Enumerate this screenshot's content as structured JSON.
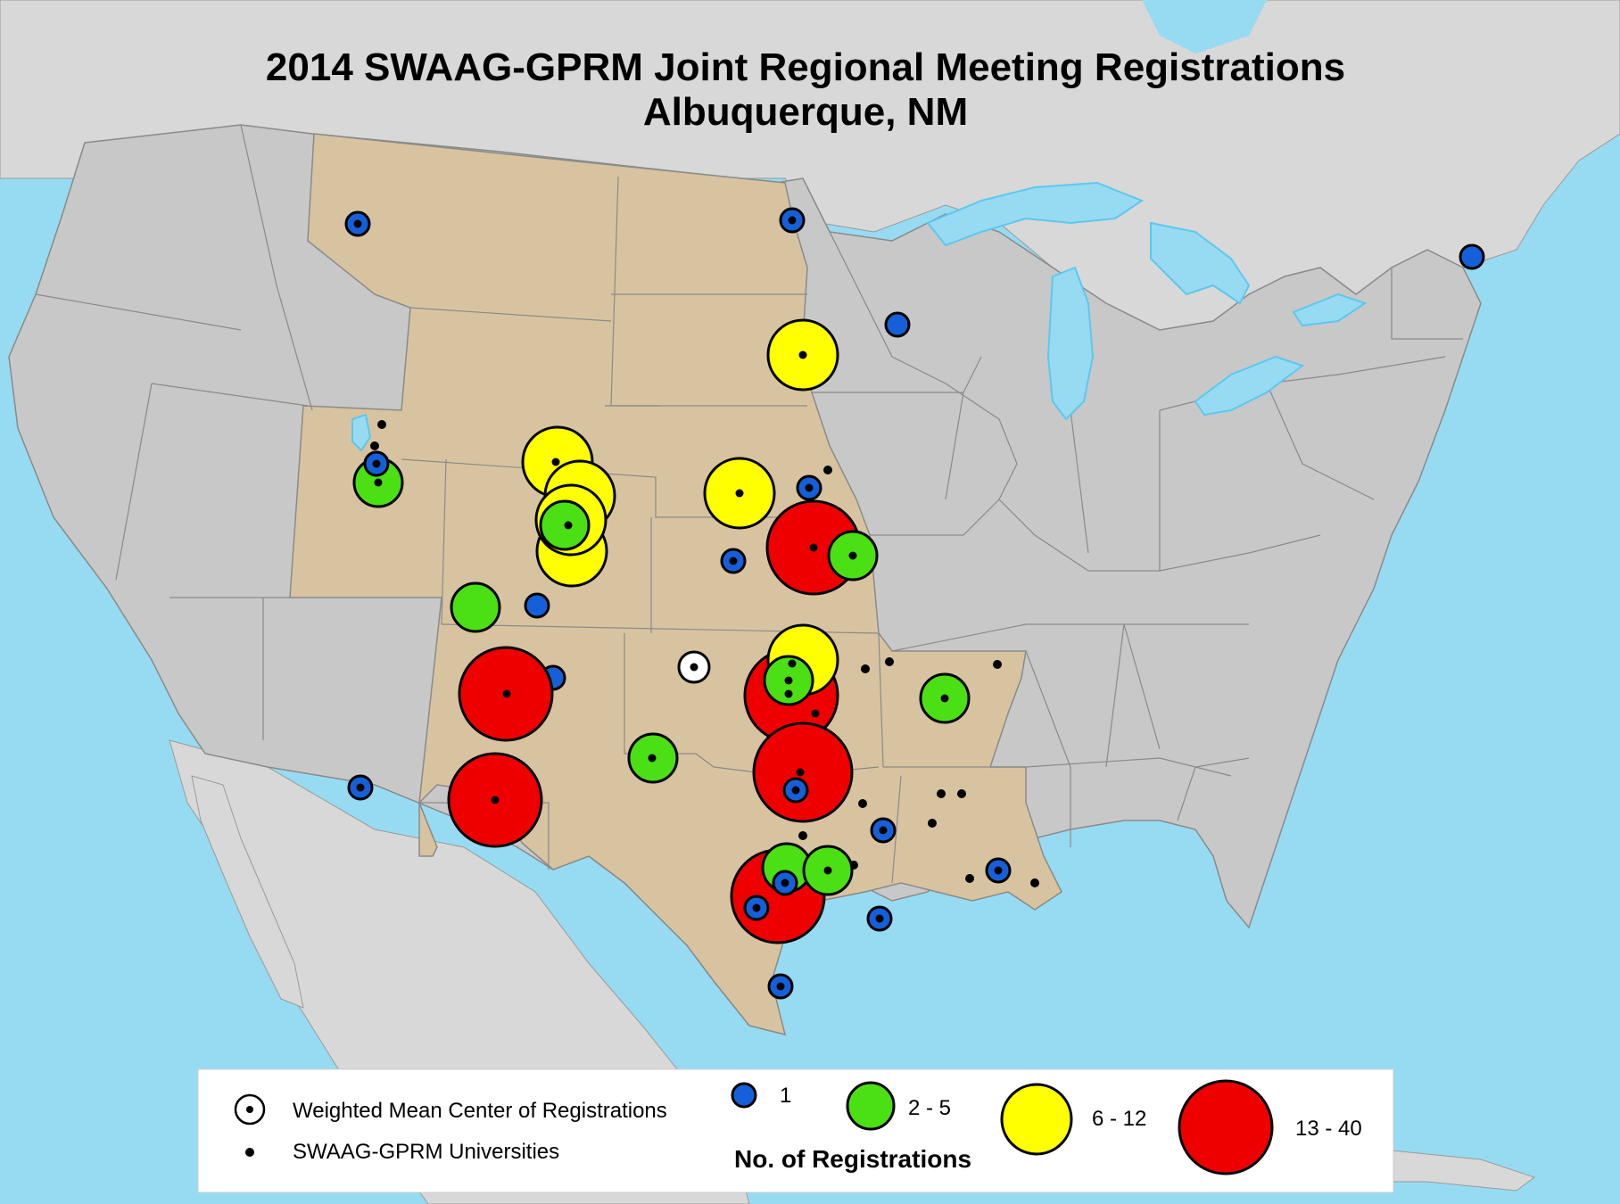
{
  "title": {
    "line1": "2014 SWAAG-GPRM Joint Regional Meeting Registrations",
    "line2": "Albuquerque, NM"
  },
  "legend": {
    "mean_center_label": "Weighted Mean Center of Registrations",
    "university_label": "SWAAG-GPRM Universities",
    "scale_title": "No. of Registrations",
    "classes": [
      {
        "label": "1",
        "color": "#1560d8"
      },
      {
        "label": "2 - 5",
        "color": "#4be014"
      },
      {
        "label": "6 - 12",
        "color": "#ffff00"
      },
      {
        "label": "13 - 40",
        "color": "#ee0000"
      }
    ]
  },
  "colors": {
    "ocean": "#97dbf2",
    "land_other": "#d8d8d8",
    "us_states": "#c8c8c8",
    "region_states": "#d8c3a0",
    "lakes": "#97dbf2",
    "lake_outline": "#5ec7ee"
  },
  "map_data": {
    "region_states": [
      "Montana",
      "North Dakota",
      "South Dakota",
      "Wyoming",
      "Nebraska",
      "Utah",
      "Colorado",
      "Kansas",
      "New Mexico",
      "Oklahoma",
      "Texas",
      "Arkansas",
      "Louisiana"
    ],
    "registration_symbols": [
      {
        "class": "1",
        "location": "Missoula, MT"
      },
      {
        "class": "1",
        "location": "Grand Forks, ND"
      },
      {
        "class": "1",
        "location": "Minnesota"
      },
      {
        "class": "1",
        "location": "Vermont"
      },
      {
        "class": "6 - 12",
        "location": "Vermillion, SD"
      },
      {
        "class": "1",
        "location": "Logan/Salt Lake City, UT"
      },
      {
        "class": "2 - 5",
        "location": "Provo, UT"
      },
      {
        "class": "6 - 12",
        "location": "Laramie, WY"
      },
      {
        "class": "6 - 12",
        "location": "Fort Collins, CO"
      },
      {
        "class": "6 - 12",
        "location": "Boulder, CO"
      },
      {
        "class": "2 - 5",
        "location": "Denver, CO"
      },
      {
        "class": "6 - 12",
        "location": "Colorado Springs, CO"
      },
      {
        "class": "6 - 12",
        "location": "Kearney, NE"
      },
      {
        "class": "1",
        "location": "Omaha, NE"
      },
      {
        "class": "13 - 40",
        "location": "Lawrence, KS"
      },
      {
        "class": "2 - 5",
        "location": "Kansas City, MO"
      },
      {
        "class": "1",
        "location": "Wichita, KS"
      },
      {
        "class": "2 - 5",
        "location": "Durango, CO"
      },
      {
        "class": "1",
        "location": "Alamosa, CO"
      },
      {
        "class": "13 - 40",
        "location": "Albuquerque, NM"
      },
      {
        "class": "1",
        "location": "Taos, NM"
      },
      {
        "class": "13 - 40",
        "location": "Las Cruces, NM"
      },
      {
        "class": "1",
        "location": "Tucson, AZ"
      },
      {
        "class": "6 - 12",
        "location": "Stillwater, OK"
      },
      {
        "class": "2 - 5",
        "location": "Tulsa, OK"
      },
      {
        "class": "13 - 40",
        "location": "Norman, OK"
      },
      {
        "class": "2 - 5",
        "location": "Fayetteville, AR"
      },
      {
        "class": "2 - 5",
        "location": "Lubbock, TX"
      },
      {
        "class": "13 - 40",
        "location": "Denton, TX"
      },
      {
        "class": "1",
        "location": "Dallas, TX"
      },
      {
        "class": "1",
        "location": "Nacogdoches, TX"
      },
      {
        "class": "1",
        "location": "Baton Rouge, LA"
      },
      {
        "class": "2 - 5",
        "location": "College Station, TX"
      },
      {
        "class": "2 - 5",
        "location": "Waco, TX"
      },
      {
        "class": "13 - 40",
        "location": "San Marcos, TX"
      },
      {
        "class": "1",
        "location": "Austin, TX"
      },
      {
        "class": "1",
        "location": "San Antonio, TX"
      },
      {
        "class": "1",
        "location": "Houston, TX"
      },
      {
        "class": "1",
        "location": "Corpus Christi, TX"
      }
    ],
    "mean_center": {
      "location": "Western Oklahoma"
    }
  }
}
